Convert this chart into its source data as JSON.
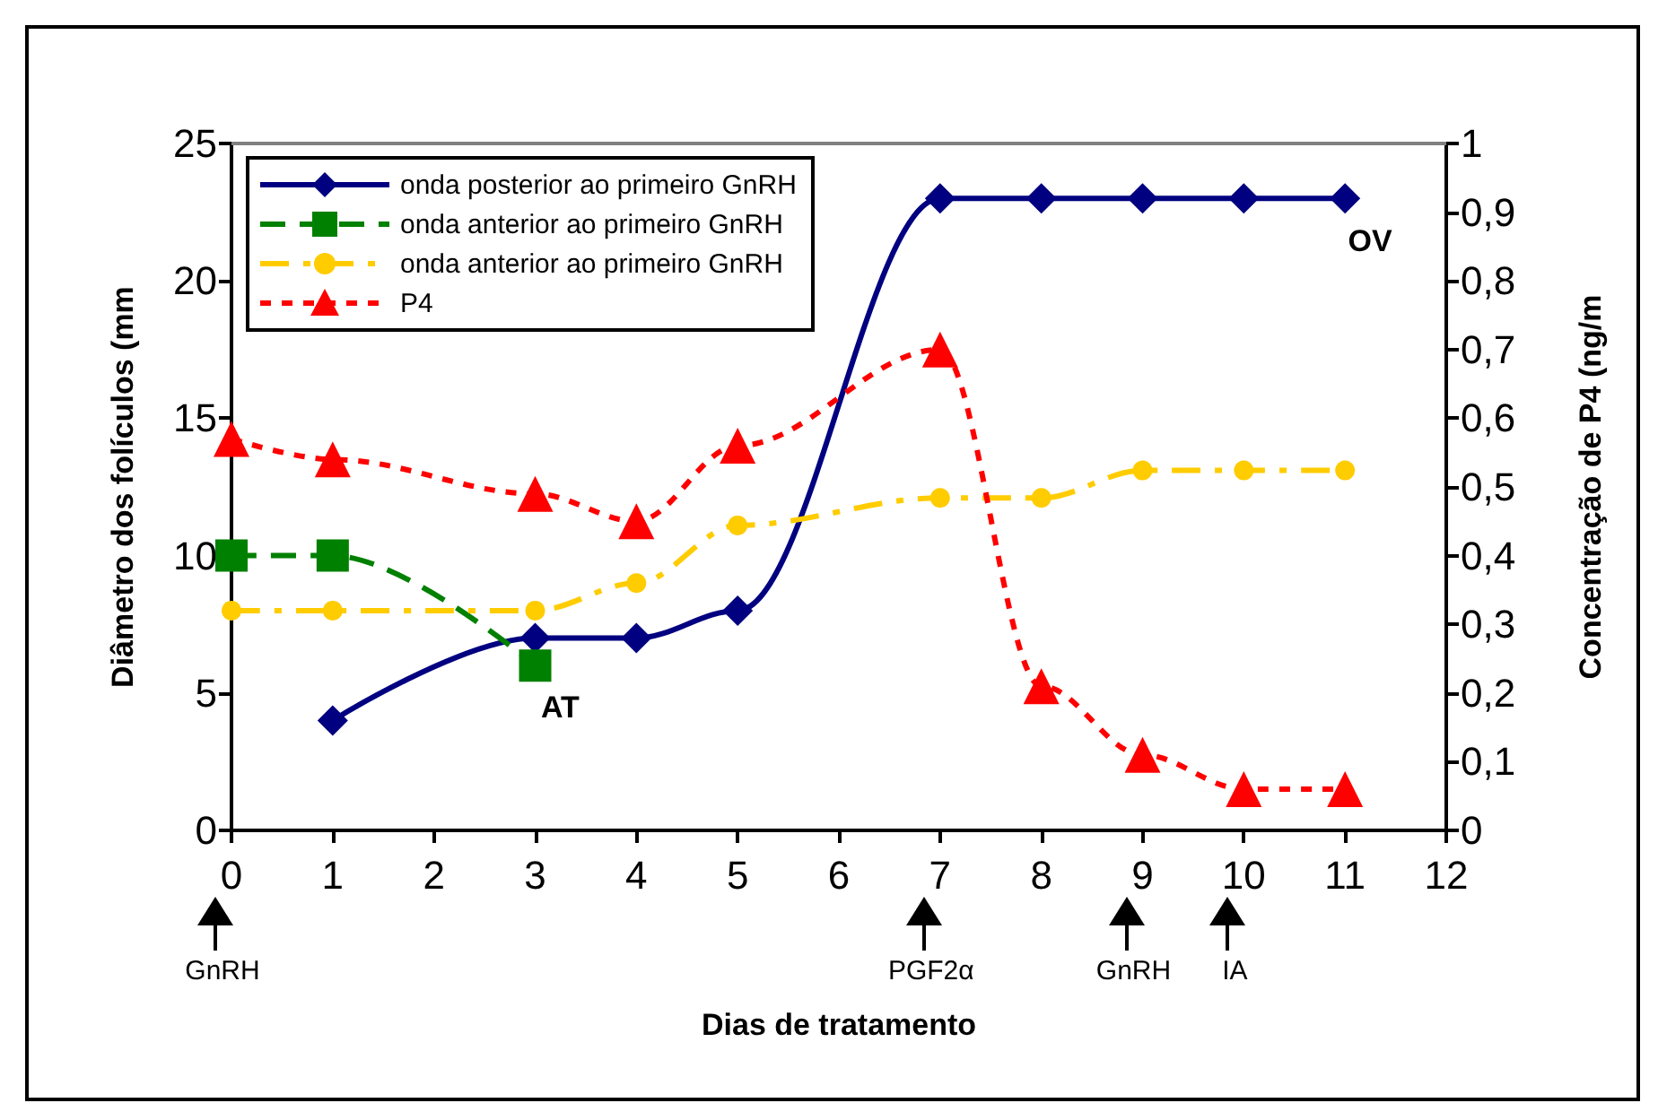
{
  "chart_data": {
    "type": "line",
    "xlabel": "Dias de tratamento",
    "ylabel": "Diâmetro dos folículos (mm",
    "y2label": "Concentração de P4 (ng/m",
    "x": [
      0,
      1,
      3,
      4,
      5,
      7,
      8,
      9,
      10,
      11
    ],
    "series": [
      {
        "name": "onda posterior ao primeiro GnRH",
        "color": "#000080",
        "marker": "diamond",
        "line_style": "solid",
        "x": [
          1,
          3,
          4,
          5,
          7,
          8,
          9,
          10,
          11
        ],
        "values": [
          4,
          7,
          7,
          8,
          23,
          23,
          23,
          23,
          23
        ]
      },
      {
        "name": "onda anterior ao primeiro GnRH",
        "color": "#008000",
        "marker": "square",
        "line_style": "dashed",
        "x": [
          0,
          1,
          3
        ],
        "values": [
          10,
          10,
          6
        ]
      },
      {
        "name": "onda anterior ao primeiro GnRH",
        "color": "#ffcc00",
        "marker": "circle",
        "line_style": "dashdot",
        "values": [
          8,
          8,
          8,
          9,
          11.1,
          12.1,
          12.1,
          13.1,
          13.1,
          13.1
        ]
      },
      {
        "name": "P4",
        "color": "#ff0000",
        "marker": "triangle",
        "line_style": "dotted",
        "axis": "y2",
        "values": [
          0.57,
          0.54,
          0.49,
          0.45,
          0.56,
          0.7,
          0.21,
          0.11,
          0.06,
          0.06
        ]
      }
    ],
    "xlim": [
      0,
      12
    ],
    "xticks": [
      0,
      1,
      2,
      3,
      4,
      5,
      6,
      7,
      8,
      9,
      10,
      11,
      12
    ],
    "ylim": [
      0,
      25
    ],
    "yticks": [
      0,
      5,
      10,
      15,
      20,
      25
    ],
    "y2lim": [
      0,
      1
    ],
    "y2ticks": [
      0,
      {
        "value": 0.1,
        "label": "0,1"
      },
      {
        "value": 0.2,
        "label": "0,2"
      },
      {
        "value": 0.3,
        "label": "0,3"
      },
      {
        "value": 0.4,
        "label": "0,4"
      },
      {
        "value": 0.5,
        "label": "0,5"
      },
      {
        "value": 0.6,
        "label": "0,6"
      },
      {
        "value": 0.7,
        "label": "0,7"
      },
      {
        "value": 0.8,
        "label": "0,8"
      },
      {
        "value": 0.9,
        "label": "0,9"
      },
      1
    ],
    "annotations": [
      {
        "text": "AT",
        "x": 3,
        "y": 6
      },
      {
        "text": "OV",
        "x": 11,
        "y": 23
      },
      "GnRH",
      "PGF2α",
      "GnRH",
      "IA"
    ],
    "grid": false,
    "legend": "top left"
  }
}
